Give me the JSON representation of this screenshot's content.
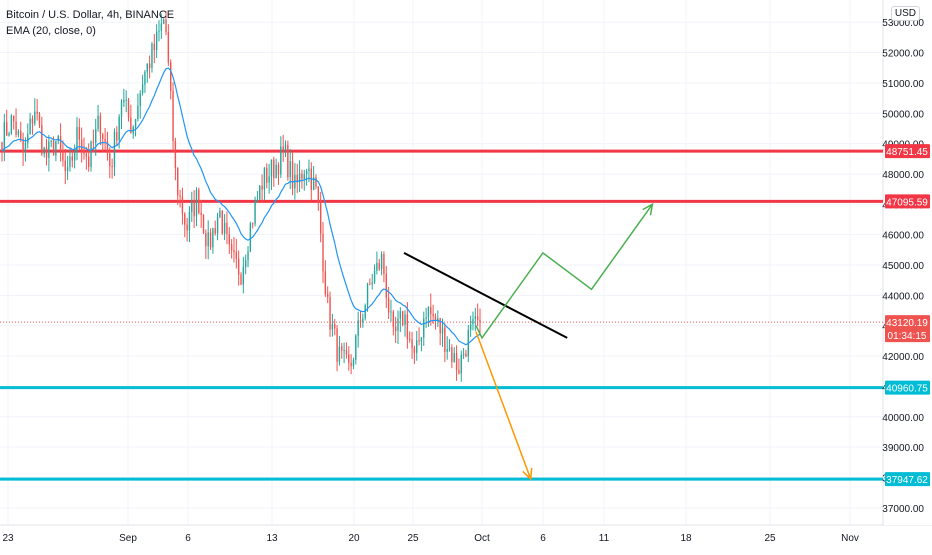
{
  "header": {
    "symbol_title": "Bitcoin / U.S. Dollar, 4h, BINANCE",
    "indicator_label": "EMA (20, close, 0)",
    "currency_badge": "USD"
  },
  "colors": {
    "up_candle": "#26a69a",
    "down_candle": "#ef5350",
    "ema_line": "#2196f3",
    "resistance_line": "#f23645",
    "support_line": "#00bcd4",
    "trendline": "#000000",
    "bull_projection": "#4caf50",
    "bear_projection": "#ff9800",
    "grid": "#f0f3fa"
  },
  "chart_data": {
    "type": "candlestick",
    "symbol": "Bitcoin / U.S. Dollar",
    "interval": "4h",
    "exchange": "BINANCE",
    "indicator": "EMA (20, close, 0)",
    "currency": "USD",
    "x_ticks": [
      "23",
      "Sep",
      "6",
      "13",
      "20",
      "25",
      "Oct",
      "6",
      "11",
      "18",
      "25",
      "Nov"
    ],
    "y_ticks": [
      37000,
      38000,
      39000,
      40000,
      41000,
      42000,
      43000,
      44000,
      45000,
      46000,
      47000,
      48000,
      49000,
      50000,
      51000,
      52000,
      53000
    ],
    "y_range": [
      36500,
      53600
    ],
    "grid": true,
    "price_levels": {
      "current": {
        "price": "43120.19",
        "countdown": "01:34:15"
      },
      "resistance_1": "48751.45",
      "resistance_2": "47095.59",
      "support_1": "40960.75",
      "support_2": "37947.62"
    },
    "ohlc_waypoints_price": [
      49200,
      49800,
      48600,
      50200,
      48500,
      49100,
      47800,
      49400,
      48400,
      49800,
      48200,
      50500,
      49500,
      51200,
      52100,
      53200,
      47800,
      46200,
      47300,
      45600,
      46800,
      45200,
      44800,
      46500,
      47800,
      48200,
      48700,
      47500,
      48400,
      47300,
      43500,
      42000,
      41500,
      43200,
      44500,
      45200,
      42500,
      43400,
      41800,
      43600,
      43100,
      42400,
      41600,
      42700,
      43120
    ],
    "annotations": {
      "trendline": [
        {
          "time": "Sep 24",
          "price": 45400
        },
        {
          "time": "Oct 8",
          "price": 42600
        }
      ],
      "bullish_projection": [
        {
          "time": "Sep 30",
          "price": 43000
        },
        {
          "time": "Oct 1",
          "price": 42600
        },
        {
          "time": "Oct 6",
          "price": 45400
        },
        {
          "time": "Oct 10",
          "price": 44200
        },
        {
          "time": "Oct 15",
          "price": 47000
        }
      ],
      "bearish_projection": [
        {
          "time": "Sep 30",
          "price": 42800
        },
        {
          "time": "Oct 5",
          "price": 37950
        }
      ]
    }
  }
}
